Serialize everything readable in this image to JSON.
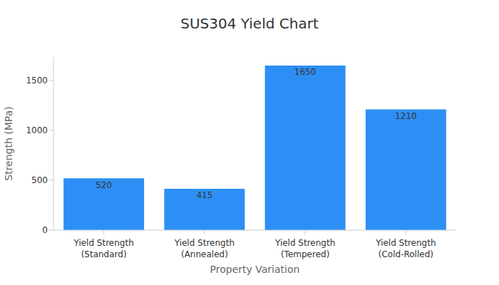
{
  "chart_data": {
    "type": "bar",
    "title": "SUS304 Yield Chart",
    "x_label": "Property Variation",
    "y_label": "Strength (MPa)",
    "categories": [
      "Yield Strength\n(Standard)",
      "Yield Strength\n(Annealed)",
      "Yield Strength\n(Tempered)",
      "Yield Strength\n(Cold-Rolled)"
    ],
    "values": [
      520,
      415,
      1650,
      1210
    ],
    "color": "#2d8ff5",
    "ylim": [
      0,
      1735
    ],
    "yticks": [
      0,
      500,
      1000,
      1500
    ],
    "grid": false,
    "data_labels": true
  }
}
